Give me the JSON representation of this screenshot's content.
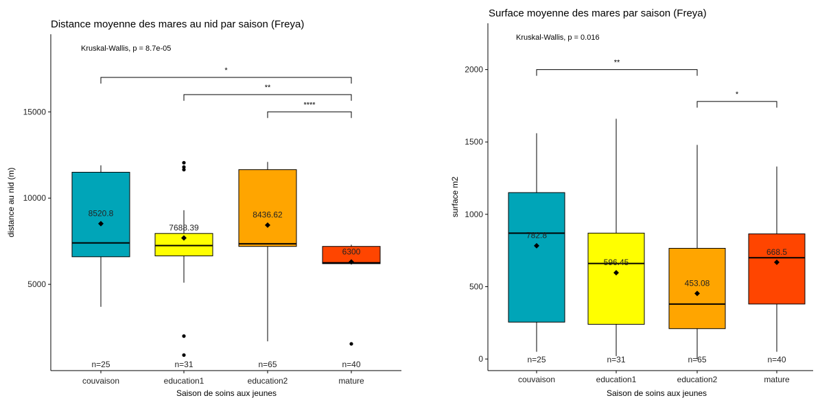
{
  "chart_data": [
    {
      "type": "box",
      "title": "Distance moyenne des mares au nid par saison (Freya)",
      "xlabel": "Saison de soins aux jeunes",
      "ylabel": "distance au nid (m)",
      "categories": [
        "couvaison",
        "education1",
        "education2",
        "mature"
      ],
      "colors": [
        "#00A5B8",
        "#FFFF00",
        "#FFA500",
        "#FF4500"
      ],
      "ylim": [
        0,
        19500
      ],
      "yticks": [
        5000,
        10000,
        15000
      ],
      "ytick_labels": [
        "5000",
        "10000",
        "15000"
      ],
      "kruskal_text": "Kruskal-Wallis, p = 8.7e-05",
      "boxes": [
        {
          "lower_whisker": 3700,
          "q1": 6600,
          "median": 7400,
          "q3": 11500,
          "upper_whisker": 11900,
          "mean": 8520.8,
          "mean_label": "8520.8",
          "n_label": "n=25",
          "outliers": []
        },
        {
          "lower_whisker": 5100,
          "q1": 6650,
          "median": 7250,
          "q3": 7950,
          "upper_whisker": 9300,
          "mean": 7688.39,
          "mean_label": "7688.39",
          "n_label": "n=31",
          "outliers": [
            12050,
            11800,
            11650,
            2000,
            900
          ]
        },
        {
          "lower_whisker": 1700,
          "q1": 7200,
          "median": 7350,
          "q3": 11650,
          "upper_whisker": 12100,
          "mean": 8436.62,
          "mean_label": "8436.62",
          "n_label": "n=65",
          "outliers": []
        },
        {
          "lower_whisker": 6200,
          "q1": 6200,
          "median": 6250,
          "q3": 7200,
          "upper_whisker": 7300,
          "mean": 6300,
          "mean_label": "6300",
          "n_label": "n=40",
          "outliers": [
            1550
          ]
        }
      ],
      "comparisons": [
        {
          "from": 0,
          "to": 3,
          "y": 17000,
          "label": "*"
        },
        {
          "from": 1,
          "to": 3,
          "y": 16000,
          "label": "**"
        },
        {
          "from": 2,
          "to": 3,
          "y": 15000,
          "label": "****"
        }
      ]
    },
    {
      "type": "box",
      "title": "Surface moyenne des mares par saison (Freya)",
      "xlabel": "Saison de soins aux jeunes",
      "ylabel": "surface m2",
      "categories": [
        "couvaison",
        "education1",
        "education2",
        "mature"
      ],
      "colors": [
        "#00A5B8",
        "#FFFF00",
        "#FFA500",
        "#FF4500"
      ],
      "ylim": [
        -80,
        2320
      ],
      "yticks": [
        0,
        500,
        1000,
        1500,
        2000
      ],
      "ytick_labels": [
        "0",
        "500",
        "1000",
        "1500",
        "2000"
      ],
      "kruskal_text": "Kruskal-Wallis, p = 0.016",
      "boxes": [
        {
          "lower_whisker": 50,
          "q1": 255,
          "median": 870,
          "q3": 1150,
          "upper_whisker": 1560,
          "mean": 782.8,
          "mean_label": "782.8",
          "n_label": "n=25",
          "outliers": []
        },
        {
          "lower_whisker": 20,
          "q1": 240,
          "median": 660,
          "q3": 870,
          "upper_whisker": 1660,
          "mean": 596.45,
          "mean_label": "596.45",
          "n_label": "n=31",
          "outliers": []
        },
        {
          "lower_whisker": 0,
          "q1": 210,
          "median": 380,
          "q3": 765,
          "upper_whisker": 1480,
          "mean": 453.08,
          "mean_label": "453.08",
          "n_label": "n=65",
          "outliers": []
        },
        {
          "lower_whisker": 50,
          "q1": 380,
          "median": 700,
          "q3": 865,
          "upper_whisker": 1330,
          "mean": 668.5,
          "mean_label": "668.5",
          "n_label": "n=40",
          "outliers": []
        }
      ],
      "comparisons": [
        {
          "from": 0,
          "to": 2,
          "y": 2000,
          "label": "**"
        },
        {
          "from": 2,
          "to": 3,
          "y": 1780,
          "label": "*"
        }
      ]
    }
  ]
}
